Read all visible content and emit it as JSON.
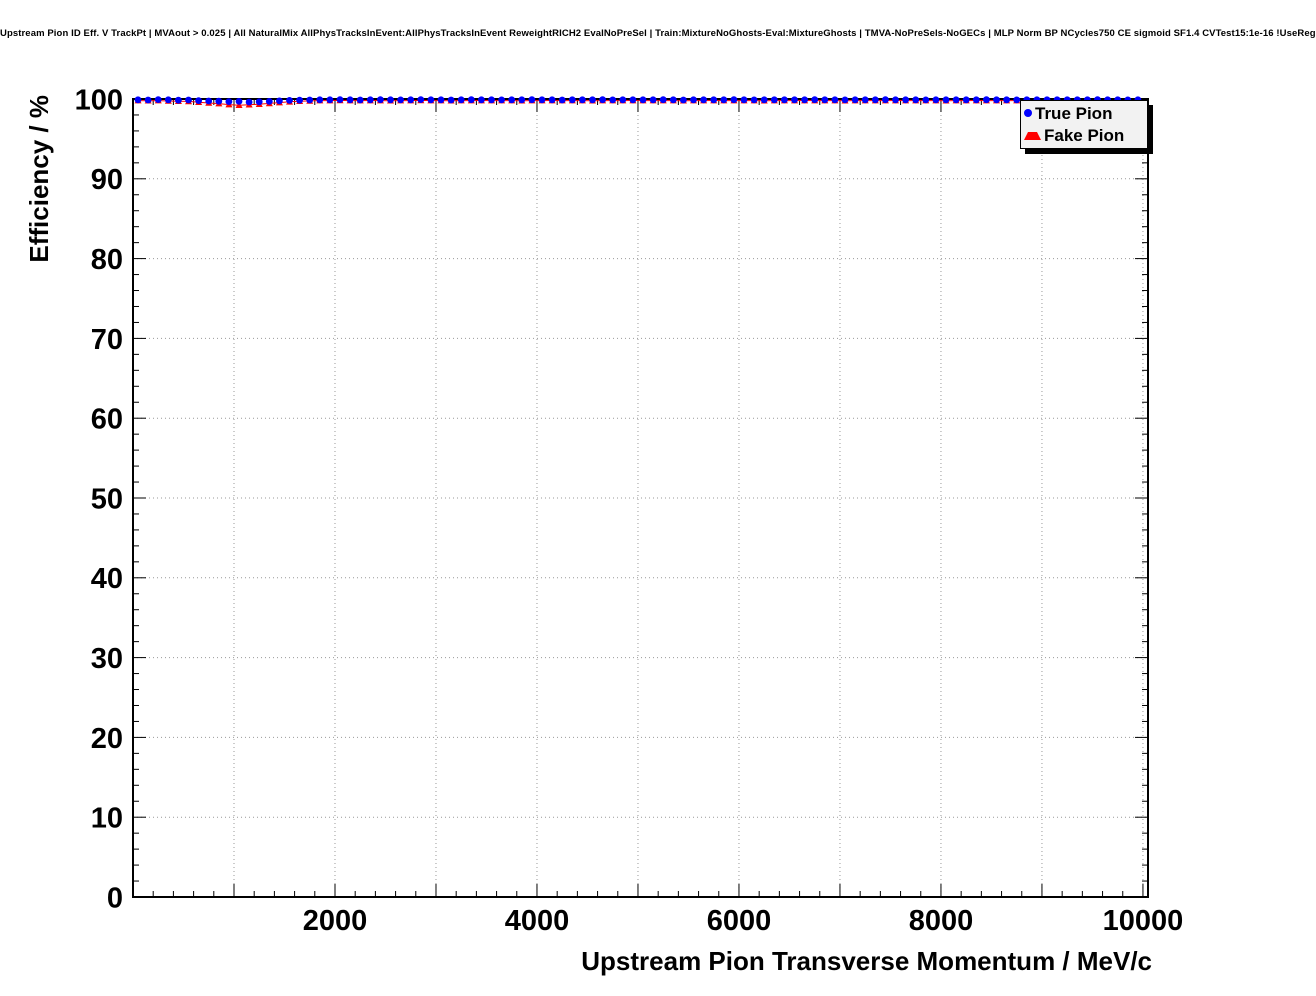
{
  "header": {
    "title": "Upstream Pion ID Eff. V TrackPt | MVAout > 0.025 | All NaturalMix AllPhysTracksInEvent:AllPhysTracksInEvent ReweightRICH2 EvalNoPreSel | Train:MixtureNoGhosts-Eval:MixtureGhosts | TMVA-NoPreSels-NoGECs | MLP Norm BP NCycles750 CE sigmoid SF1.4 CVTest15:1e-16 !UseReg"
  },
  "axes": {
    "x_label": "Upstream Pion Transverse Momentum / MeV/c",
    "y_label": "Efficiency / %",
    "x_ticks": [
      {
        "value": 2000,
        "label": "2000"
      },
      {
        "value": 4000,
        "label": "4000"
      },
      {
        "value": 6000,
        "label": "6000"
      },
      {
        "value": 8000,
        "label": "8000"
      },
      {
        "value": 10000,
        "label": "10000"
      }
    ],
    "y_ticks": [
      {
        "value": 0,
        "label": "0"
      },
      {
        "value": 10,
        "label": "10"
      },
      {
        "value": 20,
        "label": "20"
      },
      {
        "value": 30,
        "label": "30"
      },
      {
        "value": 40,
        "label": "40"
      },
      {
        "value": 50,
        "label": "50"
      },
      {
        "value": 60,
        "label": "60"
      },
      {
        "value": 70,
        "label": "70"
      },
      {
        "value": 80,
        "label": "80"
      },
      {
        "value": 90,
        "label": "90"
      },
      {
        "value": 100,
        "label": "100"
      }
    ]
  },
  "legend": {
    "items": [
      {
        "label": "True Pion",
        "marker": "circle",
        "color": "#0000ff"
      },
      {
        "label": "Fake Pion",
        "marker": "triangle",
        "color": "#ff0000"
      }
    ]
  },
  "chart_data": {
    "type": "scatter",
    "title": "Upstream Pion ID Eff. V TrackPt | MVAout > 0.025",
    "xlabel": "Upstream Pion Transverse Momentum / MeV/c",
    "ylabel": "Efficiency / %",
    "xlim": [
      0,
      10050
    ],
    "ylim": [
      0,
      100
    ],
    "grid": true,
    "legend_position": "top-right",
    "x": [
      50,
      150,
      250,
      350,
      450,
      550,
      650,
      750,
      850,
      950,
      1050,
      1150,
      1250,
      1350,
      1450,
      1550,
      1650,
      1750,
      1850,
      1950,
      2050,
      2150,
      2250,
      2350,
      2450,
      2550,
      2650,
      2750,
      2850,
      2950,
      3050,
      3150,
      3250,
      3350,
      3450,
      3550,
      3650,
      3750,
      3850,
      3950,
      4050,
      4150,
      4250,
      4350,
      4450,
      4550,
      4650,
      4750,
      4850,
      4950,
      5050,
      5150,
      5250,
      5350,
      5450,
      5550,
      5650,
      5750,
      5850,
      5950,
      6050,
      6150,
      6250,
      6350,
      6450,
      6550,
      6650,
      6750,
      6850,
      6950,
      7050,
      7150,
      7250,
      7350,
      7450,
      7550,
      7650,
      7750,
      7850,
      7950,
      8050,
      8150,
      8250,
      8350,
      8450,
      8550,
      8650,
      8750,
      8850,
      8950,
      9050,
      9150,
      9250,
      9350,
      9450,
      9550,
      9650,
      9750,
      9850,
      9950
    ],
    "series": [
      {
        "name": "True Pion",
        "marker": "circle",
        "color": "#0000ff",
        "values": [
          99.9,
          99.88,
          99.92,
          99.9,
          99.85,
          99.87,
          99.8,
          99.75,
          99.72,
          99.68,
          99.7,
          99.62,
          99.65,
          99.7,
          99.76,
          99.82,
          99.85,
          99.88,
          99.9,
          99.9,
          99.92,
          99.9,
          99.88,
          99.9,
          99.91,
          99.9,
          99.89,
          99.9,
          99.92,
          99.9,
          99.9,
          99.88,
          99.9,
          99.91,
          99.9,
          99.9,
          99.89,
          99.9,
          99.9,
          99.91,
          99.9,
          99.9,
          99.88,
          99.9,
          99.9,
          99.9,
          99.91,
          99.89,
          99.9,
          99.9,
          99.9,
          99.9,
          99.91,
          99.9,
          99.88,
          99.9,
          99.9,
          99.9,
          99.9,
          99.91,
          99.9,
          99.89,
          99.9,
          99.9,
          99.9,
          99.9,
          99.9,
          99.91,
          99.9,
          99.9,
          99.89,
          99.9,
          99.9,
          99.9,
          99.91,
          99.9,
          99.9,
          99.9,
          99.89,
          99.9,
          99.9,
          99.9,
          99.9,
          99.9,
          99.91,
          99.9,
          99.9,
          99.89,
          99.9,
          99.9,
          99.9,
          99.9,
          99.9,
          99.9,
          99.9,
          99.91,
          99.9,
          99.9,
          99.89,
          99.9
        ]
      },
      {
        "name": "Fake Pion",
        "marker": "triangle-up",
        "color": "#ff0000",
        "line": true,
        "values": [
          99.8,
          99.78,
          99.8,
          99.75,
          99.72,
          99.7,
          99.6,
          99.5,
          99.42,
          99.3,
          99.22,
          99.28,
          99.35,
          99.45,
          99.55,
          99.65,
          99.72,
          99.76,
          99.8,
          99.8,
          99.82,
          99.8,
          99.8,
          99.81,
          99.8,
          99.79,
          99.8,
          99.8,
          99.82,
          99.8,
          99.8,
          99.79,
          99.8,
          99.8,
          99.81,
          99.8,
          99.8,
          99.8,
          99.79,
          99.8,
          99.8,
          99.81,
          99.8,
          99.8,
          99.8,
          99.79,
          99.8,
          99.8,
          99.8,
          99.81,
          99.8,
          99.8,
          99.8,
          99.8,
          99.79,
          99.8,
          99.8,
          99.81,
          99.8,
          99.8,
          99.8,
          99.8,
          99.79,
          99.8,
          99.8,
          99.8,
          99.81,
          99.8,
          99.8,
          99.8,
          99.79,
          99.8,
          99.8,
          99.8,
          99.8,
          99.81,
          99.8,
          99.8,
          99.8,
          99.8,
          99.79,
          99.8,
          99.8,
          99.81,
          99.8,
          99.8,
          99.8,
          99.8,
          99.8,
          99.79,
          99.8,
          99.8,
          99.8,
          99.8,
          99.8,
          99.8,
          99.8,
          99.81,
          99.8,
          99.8
        ]
      }
    ]
  }
}
